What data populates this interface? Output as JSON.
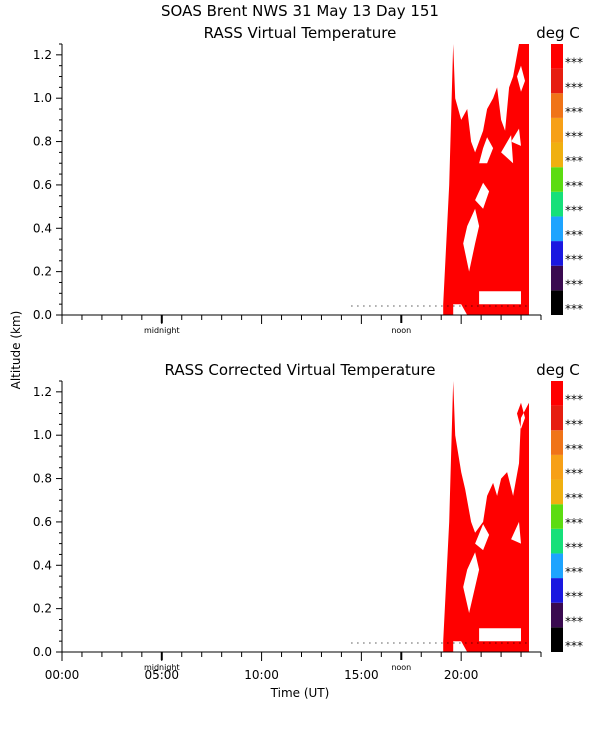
{
  "page": {
    "header": "SOAS Brent NWS  31 May 13 Day 151",
    "ylabel": "Altitude (km)",
    "xlabel": "Time (UT)",
    "x_ticks": [
      "00:00",
      "05:00",
      "10:00",
      "15:00",
      "20:00"
    ],
    "y_ticks": [
      "0.0",
      "0.2",
      "0.4",
      "0.6",
      "0.8",
      "1.0",
      "1.2"
    ],
    "midnight_label": "midnight",
    "noon_label": "noon",
    "colorbar_label": "***",
    "colors": {
      "fill": "#ff0000",
      "colorbar": [
        "#000000",
        "#3a0a50",
        "#1a18e0",
        "#1ea4ff",
        "#16e07a",
        "#5cdc12",
        "#f0b010",
        "#f7a017",
        "#f07418",
        "#e61e10",
        "#ff0000"
      ]
    }
  },
  "chart_data": [
    {
      "type": "heatmap",
      "title": "RASS Virtual Temperature",
      "unit": "deg C",
      "xlabel": "Time (UT)",
      "ylabel": "Altitude (km)",
      "xlim": [
        0,
        24
      ],
      "ylim": [
        0,
        1.25
      ],
      "filled_region": [
        [
          19.1,
          0.0
        ],
        [
          19.1,
          0.05
        ],
        [
          19.4,
          0.6
        ],
        [
          19.6,
          1.25
        ],
        [
          19.7,
          1.0
        ],
        [
          20.0,
          0.9
        ],
        [
          20.3,
          0.95
        ],
        [
          20.5,
          0.8
        ],
        [
          20.7,
          0.75
        ],
        [
          21.1,
          0.85
        ],
        [
          21.3,
          0.95
        ],
        [
          21.6,
          1.0
        ],
        [
          21.8,
          1.05
        ],
        [
          22.0,
          0.9
        ],
        [
          22.2,
          0.85
        ],
        [
          22.4,
          1.05
        ],
        [
          22.6,
          1.1
        ],
        [
          22.9,
          1.25
        ],
        [
          23.4,
          1.25
        ],
        [
          23.4,
          0.0
        ],
        [
          20.3,
          0.0
        ],
        [
          20.0,
          0.05
        ],
        [
          19.6,
          0.05
        ],
        [
          19.6,
          0.0
        ]
      ],
      "holes": [
        [
          [
            20.4,
            0.2
          ],
          [
            20.7,
            0.33
          ],
          [
            20.9,
            0.41
          ],
          [
            20.7,
            0.49
          ],
          [
            20.3,
            0.41
          ],
          [
            20.1,
            0.33
          ]
        ],
        [
          [
            20.9,
            0.11
          ],
          [
            23.0,
            0.11
          ],
          [
            23.0,
            0.05
          ],
          [
            20.9,
            0.05
          ]
        ],
        [
          [
            20.7,
            0.53
          ],
          [
            21.1,
            0.49
          ],
          [
            21.4,
            0.57
          ],
          [
            21.1,
            0.61
          ]
        ],
        [
          [
            20.9,
            0.7
          ],
          [
            21.3,
            0.7
          ],
          [
            21.6,
            0.77
          ],
          [
            21.3,
            0.82
          ],
          [
            21.1,
            0.77
          ]
        ],
        [
          [
            22.5,
            0.8
          ],
          [
            22.9,
            0.86
          ],
          [
            23.0,
            0.78
          ]
        ],
        [
          [
            22.0,
            0.75
          ],
          [
            22.5,
            0.83
          ],
          [
            22.6,
            0.7
          ]
        ],
        [
          [
            22.8,
            1.1
          ],
          [
            23.0,
            1.03
          ],
          [
            23.2,
            1.08
          ],
          [
            23.0,
            1.15
          ]
        ]
      ]
    },
    {
      "type": "heatmap",
      "title": "RASS Corrected Virtual Temperature",
      "unit": "deg C",
      "xlabel": "Time (UT)",
      "ylabel": "Altitude (km)",
      "xlim": [
        0,
        24
      ],
      "ylim": [
        0,
        1.25
      ],
      "filled_region": [
        [
          19.1,
          0.0
        ],
        [
          19.1,
          0.05
        ],
        [
          19.4,
          0.6
        ],
        [
          19.6,
          1.25
        ],
        [
          19.7,
          1.0
        ],
        [
          20.0,
          0.83
        ],
        [
          20.2,
          0.75
        ],
        [
          20.5,
          0.6
        ],
        [
          20.7,
          0.55
        ],
        [
          21.1,
          0.6
        ],
        [
          21.3,
          0.72
        ],
        [
          21.6,
          0.78
        ],
        [
          21.8,
          0.72
        ],
        [
          22.0,
          0.8
        ],
        [
          22.3,
          0.83
        ],
        [
          22.6,
          0.72
        ],
        [
          22.9,
          0.87
        ],
        [
          23.0,
          1.08
        ],
        [
          23.4,
          1.15
        ],
        [
          23.4,
          0.0
        ],
        [
          20.3,
          0.0
        ],
        [
          20.0,
          0.05
        ],
        [
          19.6,
          0.05
        ],
        [
          19.6,
          0.0
        ]
      ],
      "holes": [
        [
          [
            20.4,
            0.18
          ],
          [
            20.7,
            0.3
          ],
          [
            20.9,
            0.38
          ],
          [
            20.7,
            0.46
          ],
          [
            20.3,
            0.38
          ],
          [
            20.1,
            0.3
          ]
        ],
        [
          [
            20.9,
            0.11
          ],
          [
            23.0,
            0.11
          ],
          [
            23.0,
            0.05
          ],
          [
            20.9,
            0.05
          ]
        ],
        [
          [
            20.7,
            0.5
          ],
          [
            21.1,
            0.47
          ],
          [
            21.4,
            0.54
          ],
          [
            21.1,
            0.59
          ]
        ],
        [
          [
            22.5,
            0.52
          ],
          [
            22.9,
            0.6
          ],
          [
            23.0,
            0.5
          ]
        ],
        [
          [
            22.8,
            1.1
          ],
          [
            23.0,
            1.03
          ],
          [
            23.2,
            1.08
          ],
          [
            23.0,
            1.15
          ]
        ]
      ]
    }
  ]
}
